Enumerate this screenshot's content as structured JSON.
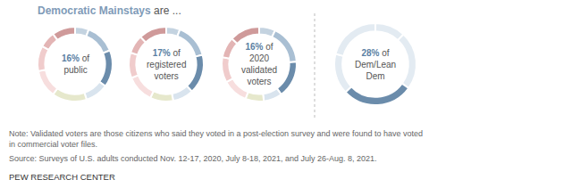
{
  "title": [
    "Democratic Mainstays",
    "are ..."
  ],
  "chart_data": [
    {
      "type": "pie",
      "annotation": [
        "16% of",
        "public"
      ],
      "values": [
        6,
        13,
        16,
        10,
        15,
        12,
        11,
        7,
        10
      ],
      "colors": [
        "#c4d3e0",
        "#a9bfd3",
        "#6b8cab",
        "#d9e4ee",
        "#e6e8cc",
        "#f7dede",
        "#f0cccc",
        "#e3b5b5",
        "#cf9a9a"
      ]
    },
    {
      "type": "pie",
      "annotation": [
        "17% of",
        "registered",
        "voters"
      ],
      "values": [
        6,
        15,
        17,
        9,
        10,
        12,
        11,
        8,
        12
      ],
      "colors": [
        "#c4d3e0",
        "#a9bfd3",
        "#6b8cab",
        "#d9e4ee",
        "#e6e8cc",
        "#f7dede",
        "#f0cccc",
        "#e3b5b5",
        "#cf9a9a"
      ]
    },
    {
      "type": "pie",
      "annotation": [
        "16% of",
        "2020",
        "validated",
        "voters"
      ],
      "values": [
        7,
        17,
        16,
        8,
        8,
        11,
        11,
        9,
        13
      ],
      "colors": [
        "#c4d3e0",
        "#a9bfd3",
        "#6b8cab",
        "#d9e4ee",
        "#e6e8cc",
        "#f7dede",
        "#f0cccc",
        "#e3b5b5",
        "#cf9a9a"
      ]
    },
    {
      "type": "pie",
      "annotation": [
        "28% of",
        "Dem/Lean",
        "Dem"
      ],
      "values": [
        12,
        23,
        28,
        16,
        21
      ],
      "colors": [
        "#e3ebf2",
        "#e3ebf2",
        "#6b8cab",
        "#e3ebf2",
        "#e3ebf2"
      ]
    }
  ],
  "note": [
    "Note: Validated voters are those citizens who said they voted in a post-election survey and were found to have voted in commercial voter files."
  ],
  "source": "Source: Surveys of U.S. adults conducted Nov. 12-17, 2020, July 8-18, 2021, and July 26-Aug. 8, 2021.",
  "credit": "PEW RESEARCH CENTER"
}
